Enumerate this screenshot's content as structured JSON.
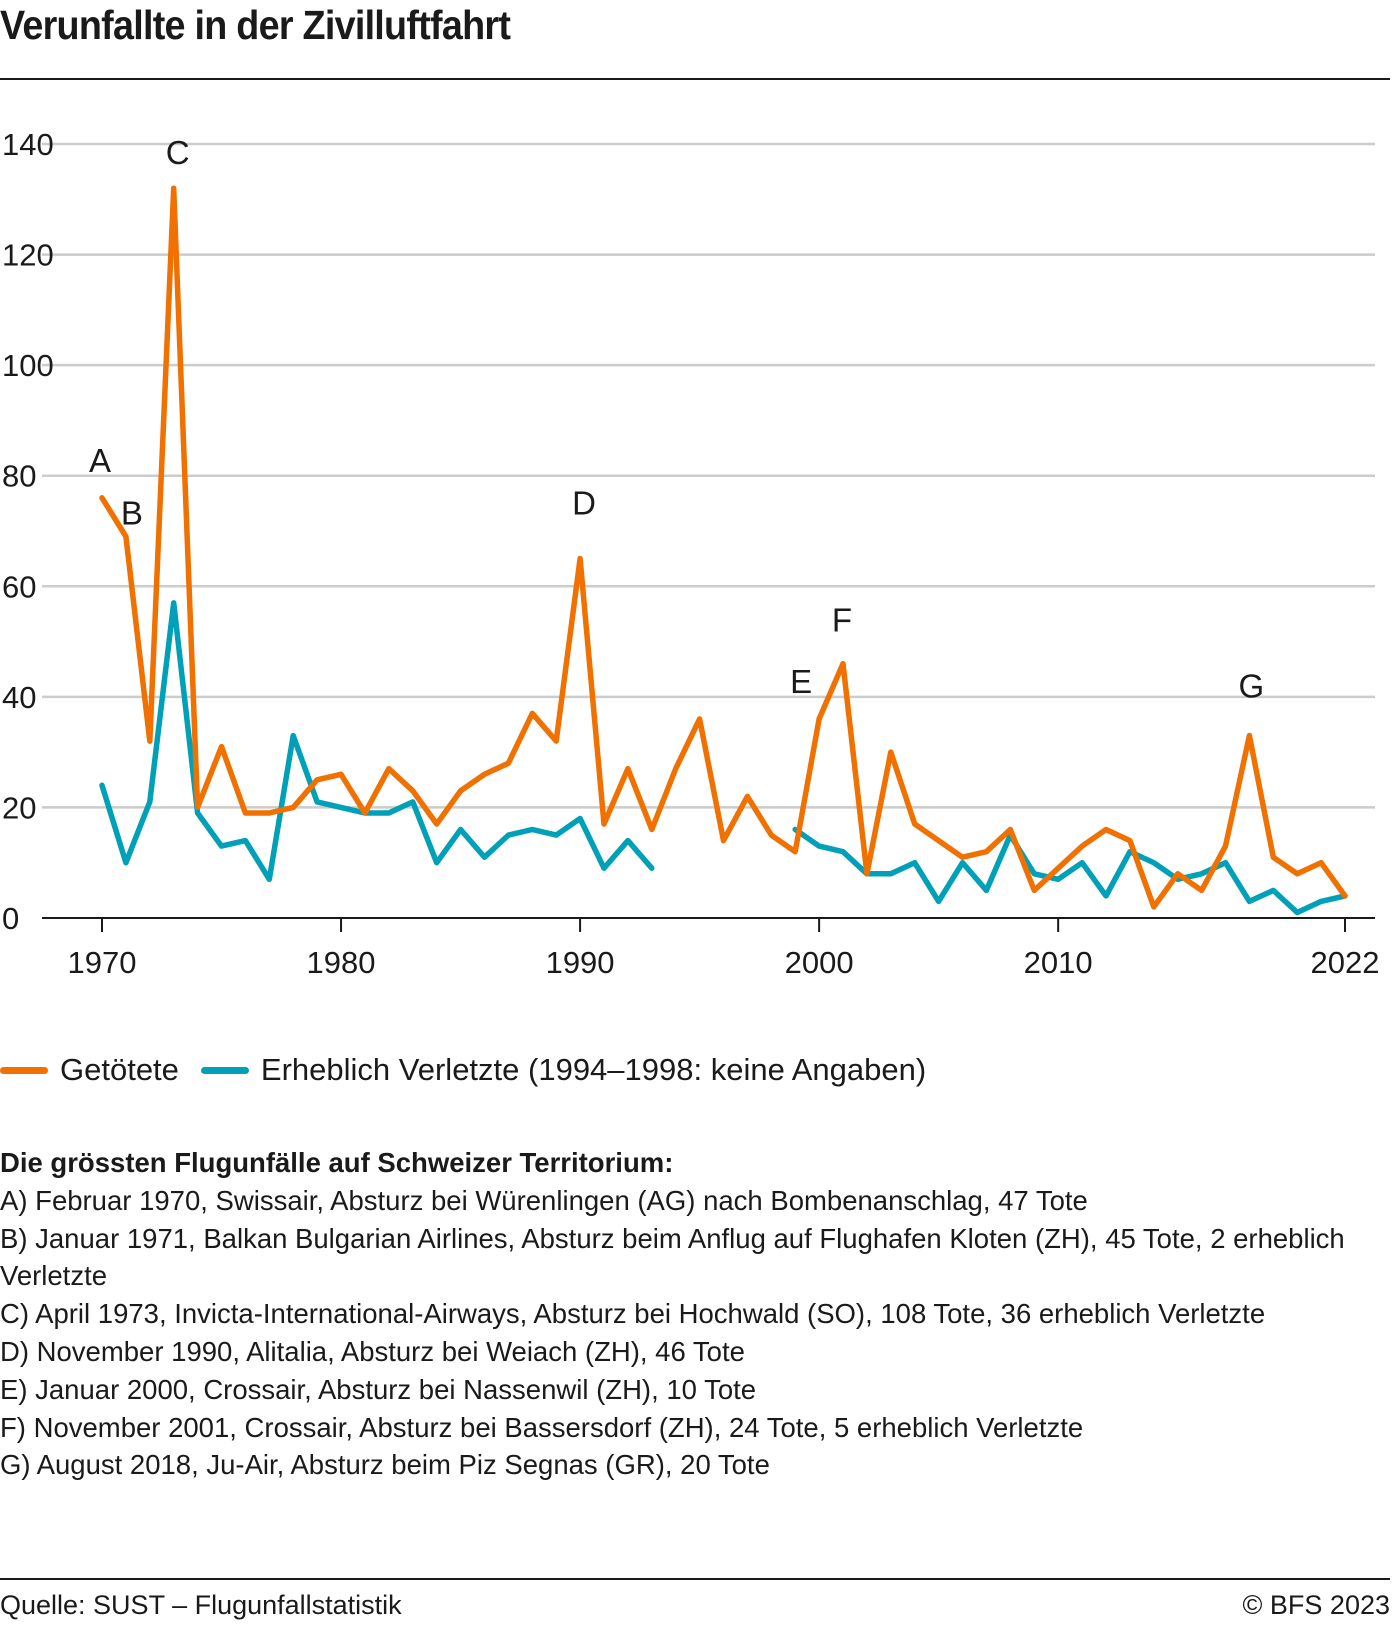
{
  "title": "Verunfallte in der Zivilluftfahrt",
  "chart_data": {
    "type": "line",
    "title": "Verunfallte in der Zivilluftfahrt",
    "xlabel": "",
    "ylabel": "",
    "xlim": [
      1970,
      2022
    ],
    "ylim": [
      0,
      140
    ],
    "yticks": [
      0,
      20,
      40,
      60,
      80,
      100,
      120,
      140
    ],
    "xticks": [
      1970,
      1980,
      1990,
      2000,
      2010,
      2022
    ],
    "grid": true,
    "legend_position": "bottom-left",
    "x": [
      1970,
      1971,
      1972,
      1973,
      1974,
      1975,
      1976,
      1977,
      1978,
      1979,
      1980,
      1981,
      1982,
      1983,
      1984,
      1985,
      1986,
      1987,
      1988,
      1989,
      1990,
      1991,
      1992,
      1993,
      1994,
      1995,
      1996,
      1997,
      1998,
      1999,
      2000,
      2001,
      2002,
      2003,
      2004,
      2005,
      2006,
      2007,
      2008,
      2009,
      2010,
      2011,
      2012,
      2013,
      2014,
      2015,
      2016,
      2017,
      2018,
      2019,
      2020,
      2021,
      2022
    ],
    "series": [
      {
        "name": "Getötete",
        "color": "#f07000",
        "values": [
          76,
          69,
          32,
          132,
          20,
          31,
          19,
          19,
          20,
          25,
          26,
          19,
          27,
          23,
          17,
          23,
          26,
          28,
          37,
          32,
          65,
          17,
          27,
          16,
          27,
          36,
          14,
          22,
          15,
          12,
          36,
          46,
          8,
          30,
          17,
          14,
          11,
          12,
          16,
          5,
          9,
          13,
          16,
          14,
          2,
          8,
          5,
          13,
          33,
          11,
          8,
          10,
          4
        ]
      },
      {
        "name": "Erheblich Verletzte (1994–1998: keine Angaben)",
        "color": "#00a0b8",
        "values": [
          24,
          10,
          21,
          57,
          19,
          13,
          14,
          7,
          33,
          21,
          20,
          19,
          19,
          21,
          10,
          16,
          11,
          15,
          16,
          15,
          18,
          9,
          14,
          9,
          null,
          null,
          null,
          null,
          null,
          16,
          13,
          12,
          8,
          8,
          10,
          3,
          10,
          5,
          15,
          8,
          7,
          10,
          4,
          12,
          10,
          7,
          8,
          10,
          3,
          5,
          1,
          3,
          4
        ]
      }
    ],
    "annotations": [
      {
        "label": "A",
        "x": 1970,
        "y": 76
      },
      {
        "label": "B",
        "x": 1971,
        "y": 69
      },
      {
        "label": "C",
        "x": 1973,
        "y": 132
      },
      {
        "label": "D",
        "x": 1990,
        "y": 65
      },
      {
        "label": "E",
        "x": 2000,
        "y": 36
      },
      {
        "label": "F",
        "x": 2001,
        "y": 46
      },
      {
        "label": "G",
        "x": 2018,
        "y": 33
      }
    ]
  },
  "legend": [
    {
      "label": "Getötete",
      "color": "#f07000"
    },
    {
      "label": "Erheblich Verletzte (1994–1998: keine Angaben)",
      "color": "#00a0b8"
    }
  ],
  "notes": {
    "heading": "Die grössten Flugunfälle auf Schweizer Territorium:",
    "items": [
      "A) Februar 1970, Swissair, Absturz bei Würenlingen (AG) nach Bombenanschlag, 47 Tote",
      "B) Januar 1971, Balkan Bulgarian Airlines, Absturz beim Anflug auf Flughafen Kloten (ZH), 45 Tote, 2 erheblich Verletzte",
      "C) April 1973, Invicta-International-Airways, Absturz bei Hochwald (SO), 108 Tote, 36 erheblich Verletzte",
      "D) November 1990, Alitalia, Absturz bei Weiach (ZH), 46 Tote",
      "E) Januar 2000, Crossair, Absturz bei Nassenwil (ZH), 10 Tote",
      "F) November 2001, Crossair, Absturz bei Bassersdorf (ZH), 24 Tote, 5 erheblich Verletzte",
      "G) August 2018, Ju-Air, Absturz beim Piz Segnas (GR), 20 Tote"
    ]
  },
  "footer": {
    "source": "Quelle: SUST – Flugunfallstatistik",
    "copyright": "© BFS 2023"
  }
}
